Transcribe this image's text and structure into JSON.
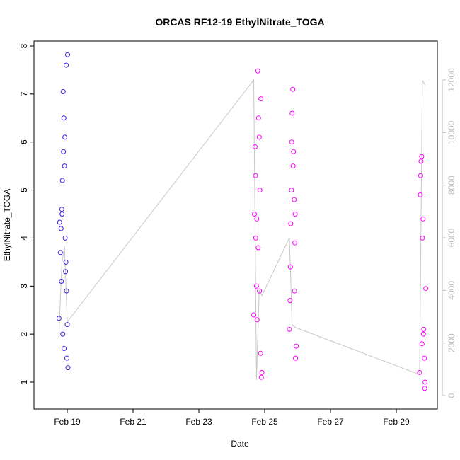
{
  "chart_data": {
    "type": "scatter",
    "title": "ORCAS RF12-19 EthylNitrate_TOGA",
    "xlabel": "Date",
    "ylabel": "EthylNitrate_TOGA",
    "x_ticks": [
      "Feb 19",
      "Feb 21",
      "Feb 23",
      "Feb 25",
      "Feb 27",
      "Feb 29"
    ],
    "y_ticks": [
      "1",
      "2",
      "3",
      "4",
      "5",
      "6",
      "7",
      "8"
    ],
    "y2_ticks": [
      "0",
      "2000",
      "4000",
      "6000",
      "8000",
      "10000",
      "12000"
    ],
    "xlim": [
      "2016-02-18",
      "2016-03-01"
    ],
    "ylim": [
      0.8,
      8.0
    ],
    "y2lim": [
      0,
      12000
    ],
    "colors": {
      "flight_1": "#3a1fe0",
      "flights_2_4": "#ff00ff",
      "secondary_line": "#c8c8c8",
      "right_axis": "#bdbdbd"
    },
    "series": [
      {
        "x": [
          "2016-02-18 18:00",
          "2016-02-18 18:30",
          "2016-02-18 19:00",
          "2016-02-18 19:30",
          "2016-02-18 20:00",
          "2016-02-18 20:30",
          "2016-02-18 21:00",
          "2016-02-18 21:30",
          "2016-02-18 22:00",
          "2016-02-18 22:30",
          "2016-02-18 23:00",
          "2016-02-18 23:30",
          "2016-02-19 00:00",
          "2016-02-19 00:30",
          "2016-02-18 20:15",
          "2016-02-18 21:15",
          "2016-02-18 22:15",
          "2016-02-18 23:15",
          "2016-02-18 19:45",
          "2016-02-18 20:45",
          "2016-02-18 21:45",
          "2016-02-18 22:45",
          "2016-02-18 23:45",
          "2016-02-19 00:15"
        ],
        "y": [
          2.33,
          4.33,
          3.7,
          4.2,
          4.6,
          5.2,
          7.05,
          6.5,
          5.5,
          4.0,
          3.5,
          2.9,
          2.2,
          1.3,
          4.5,
          5.8,
          6.1,
          7.6,
          3.1,
          2.0,
          1.7,
          3.3,
          1.5,
          7.82
        ]
      },
      {
        "x": [
          "2016-02-24 16:00",
          "2016-02-24 16:30",
          "2016-02-24 17:00",
          "2016-02-24 17:30",
          "2016-02-24 18:00",
          "2016-02-24 18:30",
          "2016-02-24 19:00",
          "2016-02-24 19:30",
          "2016-02-24 20:00",
          "2016-02-24 20:30",
          "2016-02-24 21:00",
          "2016-02-24 21:30",
          "2016-02-24 22:00",
          "2016-02-24 17:15",
          "2016-02-24 18:15",
          "2016-02-24 19:15",
          "2016-02-24 20:15",
          "2016-02-24 21:15"
        ],
        "y": [
          2.4,
          4.5,
          5.9,
          4.0,
          3.0,
          2.3,
          7.48,
          6.5,
          6.1,
          5.0,
          1.6,
          1.1,
          1.2,
          5.3,
          4.4,
          3.8,
          2.9,
          6.9
        ]
      },
      {
        "x": [
          "2016-02-25 18:00",
          "2016-02-25 18:30",
          "2016-02-25 19:00",
          "2016-02-25 19:30",
          "2016-02-25 20:00",
          "2016-02-25 20:30",
          "2016-02-25 21:00",
          "2016-02-25 21:30",
          "2016-02-25 22:00",
          "2016-02-25 22:30",
          "2016-02-25 23:00",
          "2016-02-25 18:45",
          "2016-02-25 19:45",
          "2016-02-25 20:45",
          "2016-02-25 21:45",
          "2016-02-25 22:15"
        ],
        "y": [
          2.1,
          2.7,
          4.3,
          5.0,
          6.6,
          7.1,
          5.8,
          4.8,
          3.9,
          1.5,
          1.75,
          3.4,
          6.0,
          5.5,
          2.9,
          4.5
        ]
      },
      {
        "x": [
          "2016-02-29 17:00",
          "2016-02-29 17:30",
          "2016-02-29 18:00",
          "2016-02-29 18:30",
          "2016-02-29 19:00",
          "2016-02-29 19:30",
          "2016-02-29 20:00",
          "2016-02-29 20:30",
          "2016-02-29 21:00",
          "2016-02-29 21:30",
          "2016-02-29 17:45",
          "2016-02-29 18:45",
          "2016-02-29 19:45",
          "2016-02-29 20:45"
        ],
        "y": [
          1.2,
          4.9,
          5.6,
          5.7,
          4.0,
          4.4,
          2.1,
          1.5,
          1.0,
          2.95,
          5.3,
          1.8,
          2.0,
          0.87
        ]
      }
    ],
    "secondary_series": {
      "x": [
        "2016-02-18 18:00",
        "2016-02-18 20:00",
        "2016-02-18 22:00",
        "2016-02-19 00:00",
        "2016-02-24 16:00",
        "2016-02-24 18:00",
        "2016-02-24 20:00",
        "2016-02-24 22:00",
        "2016-02-25 18:00",
        "2016-02-25 20:00",
        "2016-02-25 22:00",
        "2016-02-29 17:00",
        "2016-02-29 19:00",
        "2016-02-29 21:00"
      ],
      "y": [
        2400,
        5000,
        5700,
        2800,
        12000,
        600,
        4000,
        3800,
        6000,
        2700,
        2600,
        800,
        12000,
        11800
      ]
    }
  }
}
